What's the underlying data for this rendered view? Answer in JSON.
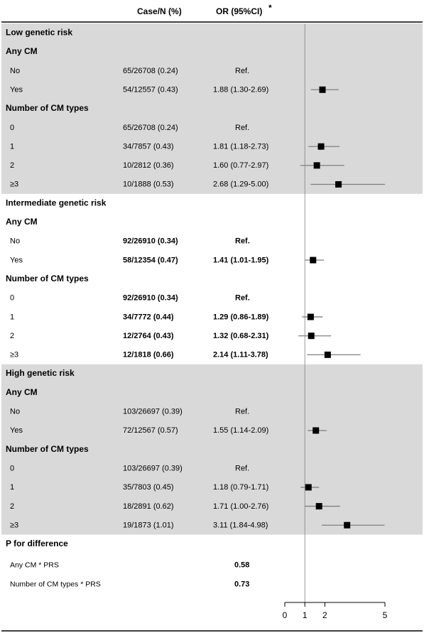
{
  "header": {
    "col_case": "Case/N (%)",
    "col_or": "OR (95%CI)",
    "col_or_mark": "*"
  },
  "chart_data": {
    "type": "forest",
    "title": "",
    "xlabel": "",
    "x_ticks": [
      0,
      1,
      2,
      5
    ],
    "xlim": [
      0,
      5
    ],
    "reference_line": 1,
    "colors": {
      "band": "#d9d9d9",
      "marker": "#000000",
      "ci": "#7f7f7f",
      "axis": "#000000",
      "refline": "#808080"
    },
    "sections": [
      {
        "title": "Low genetic risk",
        "shaded": true,
        "groups": [
          {
            "title": "Any CM",
            "rows": [
              {
                "label": "No",
                "case_n": "65/26708 (0.24)",
                "or_text": "Ref.",
                "or": null,
                "lo": null,
                "hi": null
              },
              {
                "label": "Yes",
                "case_n": "54/12557 (0.43)",
                "or_text": "1.88 (1.30-2.69)",
                "or": 1.88,
                "lo": 1.3,
                "hi": 2.69
              }
            ]
          },
          {
            "title": "Number of CM types",
            "rows": [
              {
                "label": "0",
                "case_n": "65/26708 (0.24)",
                "or_text": "Ref.",
                "or": null,
                "lo": null,
                "hi": null
              },
              {
                "label": "1",
                "case_n": "34/7857 (0.43)",
                "or_text": "1.81 (1.18-2.73)",
                "or": 1.81,
                "lo": 1.18,
                "hi": 2.73
              },
              {
                "label": "2",
                "case_n": "10/2812 (0.36)",
                "or_text": "1.60 (0.77-2.97)",
                "or": 1.6,
                "lo": 0.77,
                "hi": 2.97
              },
              {
                "label": "≥3",
                "case_n": "10/1888 (0.53)",
                "or_text": "2.68 (1.29-5.00)",
                "or": 2.68,
                "lo": 1.29,
                "hi": 5.0
              }
            ]
          }
        ]
      },
      {
        "title": "Intermediate genetic risk",
        "shaded": false,
        "groups": [
          {
            "title": "Any CM",
            "rows": [
              {
                "label": "No",
                "case_n": "92/26910 (0.34)",
                "or_text": "Ref.",
                "or": null,
                "lo": null,
                "hi": null
              },
              {
                "label": "Yes",
                "case_n": "58/12354 (0.47)",
                "or_text": "1.41 (1.01-1.95)",
                "or": 1.41,
                "lo": 1.01,
                "hi": 1.95
              }
            ]
          },
          {
            "title": "Number of CM types",
            "rows": [
              {
                "label": "0",
                "case_n": "92/26910 (0.34)",
                "or_text": "Ref.",
                "or": null,
                "lo": null,
                "hi": null
              },
              {
                "label": "1",
                "case_n": "34/7772 (0.44)",
                "or_text": "1.29 (0.86-1.89)",
                "or": 1.29,
                "lo": 0.86,
                "hi": 1.89
              },
              {
                "label": "2",
                "case_n": "12/2764 (0.43)",
                "or_text": "1.32 (0.68-2.31)",
                "or": 1.32,
                "lo": 0.68,
                "hi": 2.31
              },
              {
                "label": "≥3",
                "case_n": "12/1818 (0.66)",
                "or_text": "2.14 (1.11-3.78)",
                "or": 2.14,
                "lo": 1.11,
                "hi": 3.78
              }
            ]
          }
        ]
      },
      {
        "title": "High genetic risk",
        "shaded": true,
        "groups": [
          {
            "title": "Any CM",
            "rows": [
              {
                "label": "No",
                "case_n": "103/26697 (0.39)",
                "or_text": "Ref.",
                "or": null,
                "lo": null,
                "hi": null
              },
              {
                "label": "Yes",
                "case_n": "72/12567 (0.57)",
                "or_text": "1.55 (1.14-2.09)",
                "or": 1.55,
                "lo": 1.14,
                "hi": 2.09
              }
            ]
          },
          {
            "title": "Number of CM types",
            "rows": [
              {
                "label": "0",
                "case_n": "103/26697 (0.39)",
                "or_text": "Ref.",
                "or": null,
                "lo": null,
                "hi": null
              },
              {
                "label": "1",
                "case_n": "35/7803 (0.45)",
                "or_text": "1.18 (0.79-1.71)",
                "or": 1.18,
                "lo": 0.79,
                "hi": 1.71
              },
              {
                "label": "2",
                "case_n": "18/2891 (0.62)",
                "or_text": "1.71 (1.00-2.76)",
                "or": 1.71,
                "lo": 1.0,
                "hi": 2.76
              },
              {
                "label": "≥3",
                "case_n": "19/1873 (1.01)",
                "or_text": "3.11 (1.84-4.98)",
                "or": 3.11,
                "lo": 1.84,
                "hi": 4.98
              }
            ]
          }
        ]
      }
    ],
    "p_for_difference": {
      "title": "P for difference",
      "rows": [
        {
          "label": "Any CM * PRS",
          "value": "0.58"
        },
        {
          "label": "Number of CM types * PRS",
          "value": "0.73"
        }
      ]
    }
  }
}
